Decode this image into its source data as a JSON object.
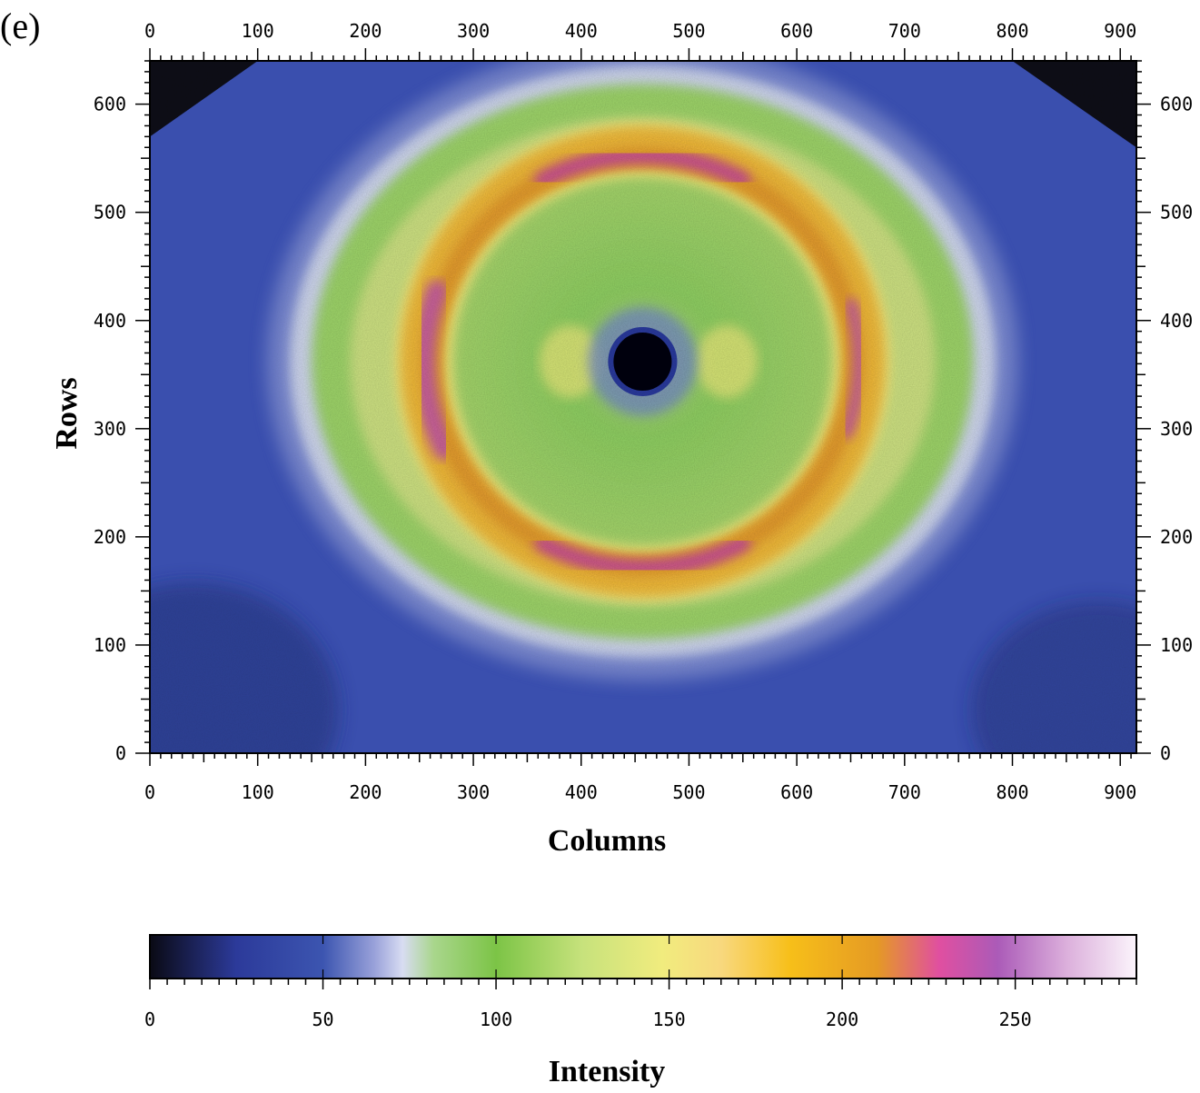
{
  "panel_label": "(e)",
  "chart_data": {
    "type": "heatmap",
    "title": "",
    "xlabel": "Columns",
    "ylabel": "Rows",
    "xlim": [
      0,
      915
    ],
    "ylim": [
      0,
      640
    ],
    "x_ticks": [
      0,
      100,
      200,
      300,
      400,
      500,
      600,
      700,
      800,
      900
    ],
    "y_ticks": [
      0,
      100,
      200,
      300,
      400,
      500,
      600
    ],
    "center": [
      457,
      362
    ],
    "beamstop_radius": 27,
    "ring_inner_radius": [
      186,
      182
    ],
    "ring_outer_radius": [
      322,
      270
    ],
    "features": [
      {
        "name": "outer diffuse halo",
        "rx": 322,
        "ry": 270,
        "intensity": 85
      },
      {
        "name": "inner ring",
        "rx": 186,
        "ry": 182,
        "intensity": 200
      },
      {
        "name": "ring peak top",
        "column": 457,
        "row": 540,
        "intensity": 235
      },
      {
        "name": "ring peak bottom",
        "column": 457,
        "row": 185,
        "intensity": 235
      },
      {
        "name": "ring peak left",
        "column": 278,
        "row": 360,
        "intensity": 230
      },
      {
        "name": "ring peak right",
        "column": 633,
        "row": 380,
        "intensity": 215
      }
    ],
    "colorbar": {
      "label": "Intensity",
      "range": [
        0,
        285
      ],
      "ticks": [
        0,
        50,
        100,
        150,
        200,
        250
      ],
      "stops": [
        {
          "value": 0,
          "color": "#0a0a14"
        },
        {
          "value": 25,
          "color": "#2c3a9a"
        },
        {
          "value": 50,
          "color": "#3c55b0"
        },
        {
          "value": 65,
          "color": "#9aa2da"
        },
        {
          "value": 73,
          "color": "#d8dcf2"
        },
        {
          "value": 82,
          "color": "#a9d68c"
        },
        {
          "value": 100,
          "color": "#7cc446"
        },
        {
          "value": 125,
          "color": "#c7e27c"
        },
        {
          "value": 148,
          "color": "#f1ec7e"
        },
        {
          "value": 165,
          "color": "#f8d87e"
        },
        {
          "value": 185,
          "color": "#f7bf19"
        },
        {
          "value": 210,
          "color": "#e59a24"
        },
        {
          "value": 228,
          "color": "#e04fa0"
        },
        {
          "value": 245,
          "color": "#ab5bb8"
        },
        {
          "value": 265,
          "color": "#dcb0dc"
        },
        {
          "value": 285,
          "color": "#fbf4fb"
        }
      ]
    }
  }
}
